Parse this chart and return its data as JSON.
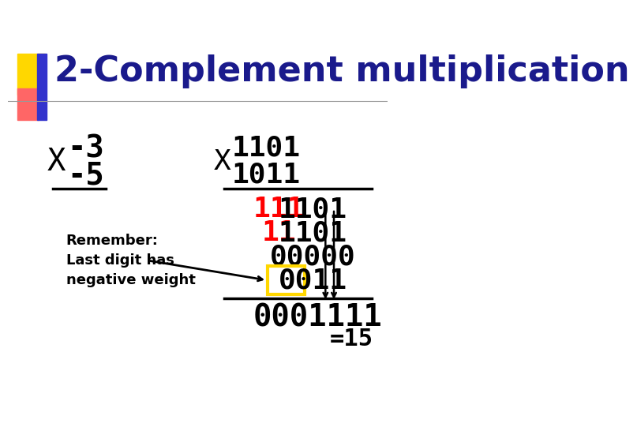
{
  "title": "2-Complement multiplication",
  "title_color": "#1a1a8c",
  "title_fontsize": 32,
  "bg_color": "#ffffff",
  "header_bar_color": "#cccccc",
  "left_x_label": "X",
  "left_num1": "-3",
  "left_num2": "-5",
  "right_x_label": "X",
  "right_num1": "1101",
  "right_num2": "1011",
  "row1_red": "111",
  "row1_black": "1101",
  "row2_red": "11",
  "row2_black": "1101",
  "row3": "00000",
  "row4_box": "0011",
  "result": "0001111",
  "result_eq": "=15",
  "remember_text": "Remember:\nLast digit has\nnegative weight",
  "yellow_rect_color": "#FFD700",
  "red_color": "#FF0000",
  "black_color": "#000000",
  "dark_blue": "#1a1a8c",
  "header_square1": "#FFD700",
  "header_square2": "#FF6666",
  "header_rect": "#3333cc"
}
